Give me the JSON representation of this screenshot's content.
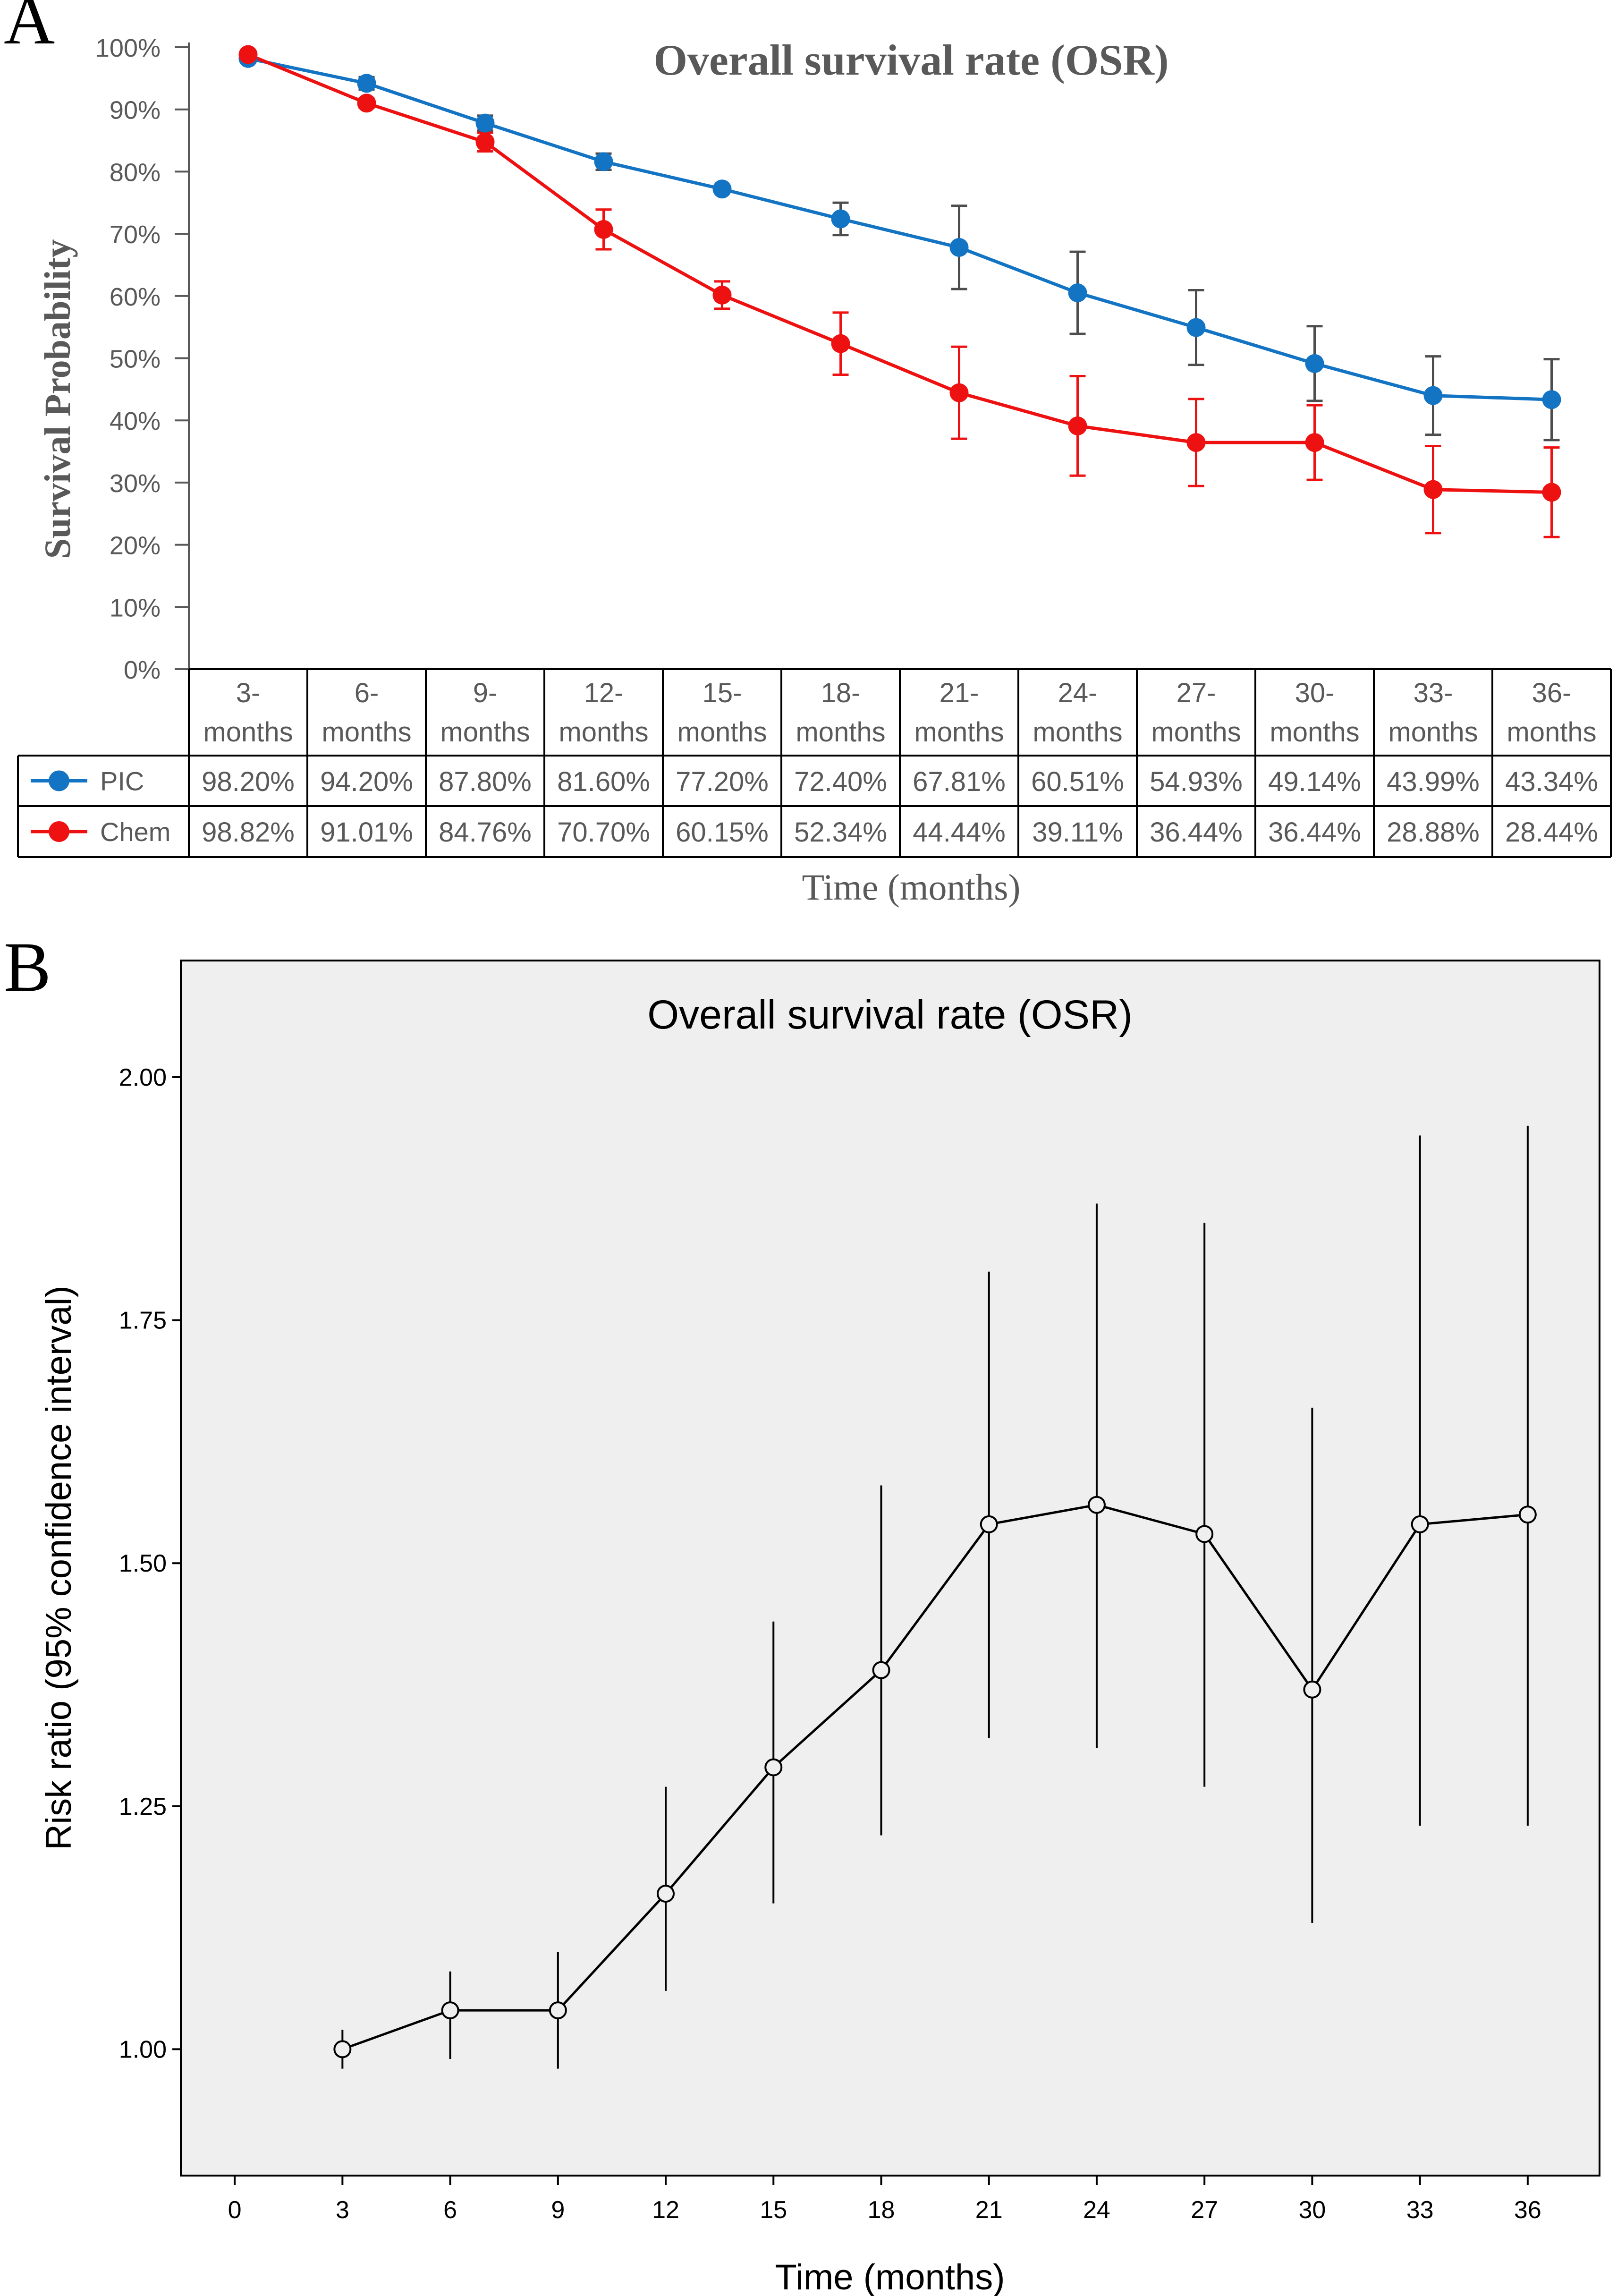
{
  "colors": {
    "pic": "#1474c4",
    "chem": "#ee1111",
    "pic_error": "#4d4d4d",
    "chem_error": "#ee1111",
    "panel_b_bg": "#efefef",
    "axis_gray": "#595959"
  },
  "chart_data": [
    {
      "panel_label": "A",
      "type": "line",
      "title": "Overall survival rate (OSR)",
      "ylabel": "Survival Probability",
      "xlabel": "Time (months)",
      "ylim": [
        0,
        100
      ],
      "y_ticks": [
        "0%",
        "10%",
        "20%",
        "30%",
        "40%",
        "50%",
        "60%",
        "70%",
        "80%",
        "90%",
        "100%"
      ],
      "categories": [
        [
          "3-",
          "months"
        ],
        [
          "6-",
          "months"
        ],
        [
          "9-",
          "months"
        ],
        [
          "12-",
          "months"
        ],
        [
          "15-",
          "months"
        ],
        [
          "18-",
          "months"
        ],
        [
          "21-",
          "months"
        ],
        [
          "24-",
          "months"
        ],
        [
          "27-",
          "months"
        ],
        [
          "30-",
          "months"
        ],
        [
          "33-",
          "months"
        ],
        [
          "36-",
          "months"
        ]
      ],
      "series": [
        {
          "name": "PIC",
          "values": [
            98.2,
            94.2,
            87.8,
            81.6,
            77.2,
            72.4,
            67.81,
            60.51,
            54.93,
            49.14,
            43.99,
            43.34
          ],
          "labels": [
            "98.20%",
            "94.20%",
            "87.80%",
            "81.60%",
            "77.20%",
            "72.40%",
            "67.81%",
            "60.51%",
            "54.93%",
            "49.14%",
            "43.99%",
            "43.34%"
          ],
          "error": [
            0,
            1,
            1.2,
            1.3,
            0,
            2.6,
            6.7,
            6.6,
            6,
            6,
            6.3,
            6.5
          ]
        },
        {
          "name": "Chem",
          "values": [
            98.82,
            91.01,
            84.76,
            70.7,
            60.15,
            52.34,
            44.44,
            39.11,
            36.44,
            36.44,
            28.88,
            28.44
          ],
          "labels": [
            "98.82%",
            "91.01%",
            "84.76%",
            "70.70%",
            "60.15%",
            "52.34%",
            "44.44%",
            "39.11%",
            "36.44%",
            "36.44%",
            "28.88%",
            "28.44%"
          ],
          "error": [
            0,
            0.7,
            1.5,
            3.2,
            2.2,
            5,
            7.4,
            8,
            7,
            6,
            7,
            7.2
          ]
        }
      ]
    },
    {
      "panel_label": "B",
      "type": "scatter",
      "title": "Overall survival rate (OSR)",
      "ylabel": "Risk ratio (95% confidence interval)",
      "xlabel": "Time (months)",
      "xlim": [
        -1.5,
        38
      ],
      "ylim": [
        0.87,
        2.12
      ],
      "x_ticks": [
        0,
        3,
        6,
        9,
        12,
        15,
        18,
        21,
        24,
        27,
        30,
        33,
        36
      ],
      "y_ticks": [
        1.0,
        1.25,
        1.5,
        1.75,
        2.0
      ],
      "y_tick_labels": [
        "1.00",
        "1.25",
        "1.50",
        "1.75",
        "2.00"
      ],
      "x": [
        3,
        6,
        9,
        12,
        15,
        18,
        21,
        24,
        27,
        30,
        33,
        36
      ],
      "values": [
        1.0,
        1.04,
        1.04,
        1.16,
        1.29,
        1.39,
        1.54,
        1.56,
        1.53,
        1.37,
        1.54,
        1.55
      ],
      "lower": [
        0.98,
        0.99,
        0.98,
        1.06,
        1.15,
        1.22,
        1.32,
        1.31,
        1.27,
        1.13,
        1.23,
        1.23
      ],
      "upper": [
        1.02,
        1.08,
        1.1,
        1.27,
        1.44,
        1.58,
        1.8,
        1.87,
        1.85,
        1.66,
        1.94,
        1.95
      ]
    }
  ]
}
